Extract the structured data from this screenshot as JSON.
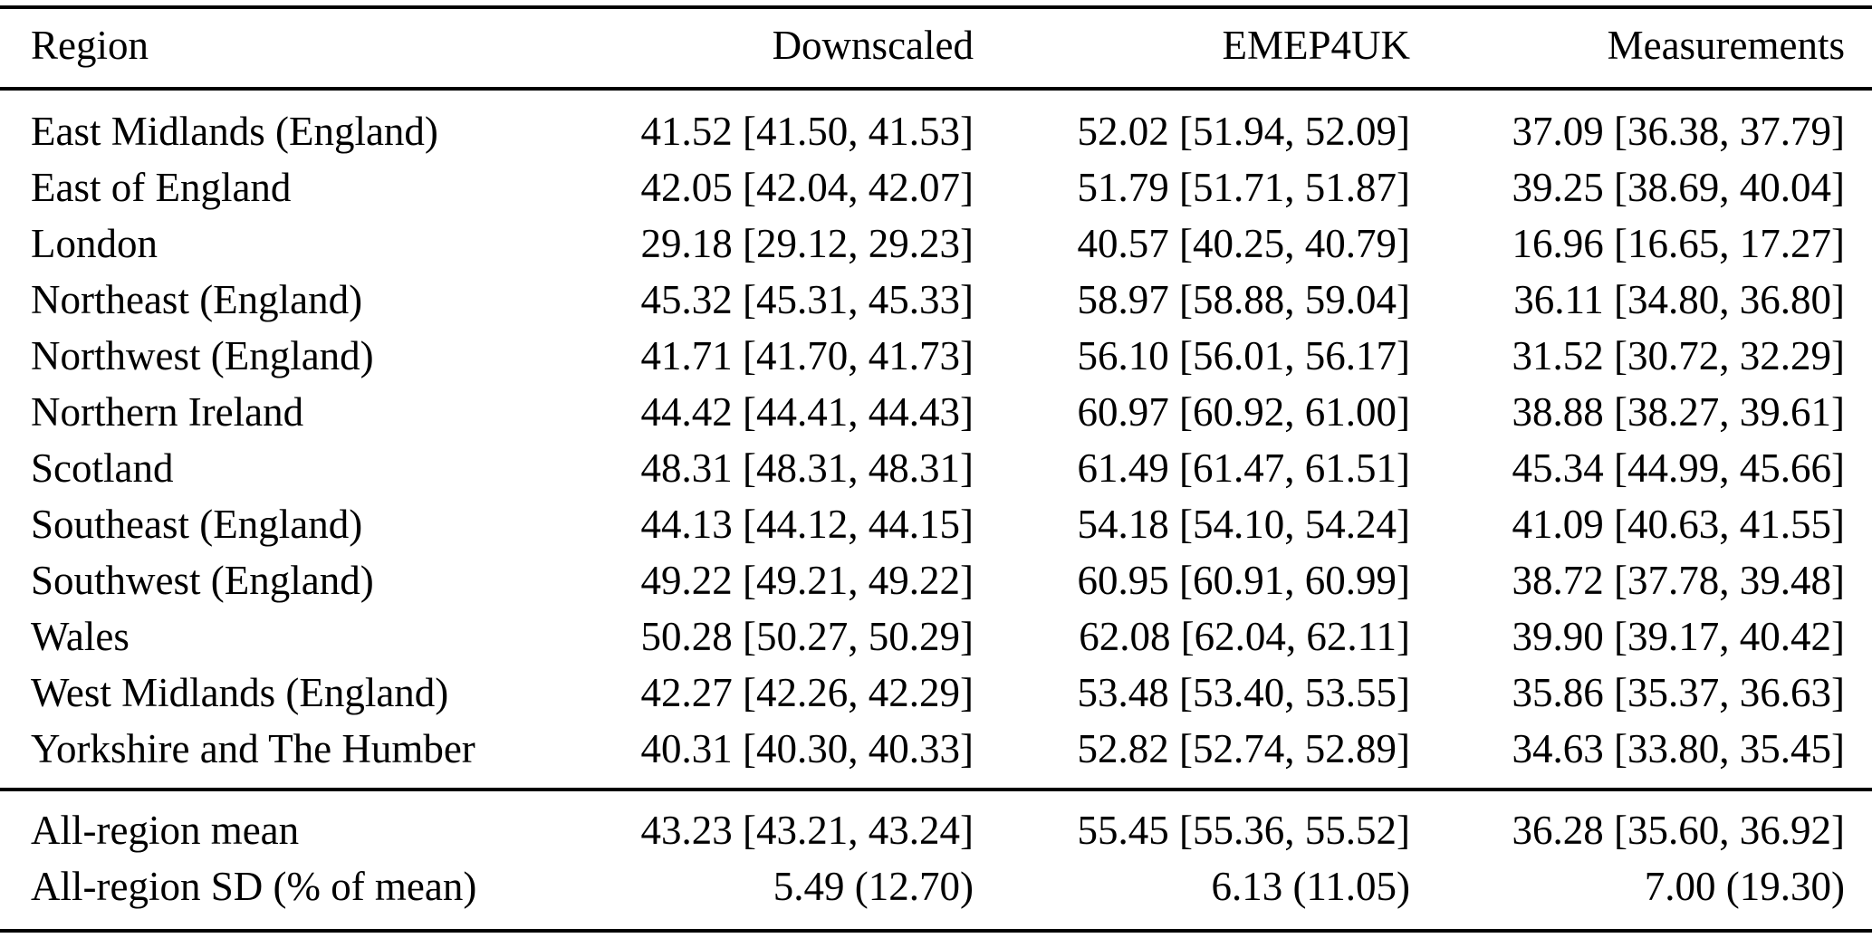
{
  "page": {
    "background_color": "#ffffff",
    "text_color": "#000000",
    "rule_color": "#000000"
  },
  "table": {
    "columns": [
      {
        "label": "Region"
      },
      {
        "label": "Downscaled"
      },
      {
        "label": "EMEP4UK"
      },
      {
        "label": "Measurements"
      }
    ],
    "rows": [
      {
        "region": "East Midlands (England)",
        "downscaled": "41.52 [41.50, 41.53]",
        "emep4uk": "52.02 [51.94, 52.09]",
        "measurements": "37.09 [36.38, 37.79]"
      },
      {
        "region": "East of England",
        "downscaled": "42.05 [42.04, 42.07]",
        "emep4uk": "51.79 [51.71, 51.87]",
        "measurements": "39.25 [38.69, 40.04]"
      },
      {
        "region": "London",
        "downscaled": "29.18 [29.12, 29.23]",
        "emep4uk": "40.57 [40.25, 40.79]",
        "measurements": "16.96 [16.65, 17.27]"
      },
      {
        "region": "Northeast (England)",
        "downscaled": "45.32 [45.31, 45.33]",
        "emep4uk": "58.97 [58.88, 59.04]",
        "measurements": "36.11 [34.80, 36.80]"
      },
      {
        "region": "Northwest (England)",
        "downscaled": "41.71 [41.70, 41.73]",
        "emep4uk": "56.10 [56.01, 56.17]",
        "measurements": "31.52 [30.72, 32.29]"
      },
      {
        "region": "Northern Ireland",
        "downscaled": "44.42 [44.41, 44.43]",
        "emep4uk": "60.97 [60.92, 61.00]",
        "measurements": "38.88 [38.27, 39.61]"
      },
      {
        "region": "Scotland",
        "downscaled": "48.31 [48.31, 48.31]",
        "emep4uk": "61.49 [61.47, 61.51]",
        "measurements": "45.34 [44.99, 45.66]"
      },
      {
        "region": "Southeast (England)",
        "downscaled": "44.13 [44.12, 44.15]",
        "emep4uk": "54.18 [54.10, 54.24]",
        "measurements": "41.09 [40.63, 41.55]"
      },
      {
        "region": "Southwest (England)",
        "downscaled": "49.22 [49.21, 49.22]",
        "emep4uk": "60.95 [60.91, 60.99]",
        "measurements": "38.72 [37.78, 39.48]"
      },
      {
        "region": "Wales",
        "downscaled": "50.28 [50.27, 50.29]",
        "emep4uk": "62.08 [62.04, 62.11]",
        "measurements": "39.90 [39.17, 40.42]"
      },
      {
        "region": "West Midlands (England)",
        "downscaled": "42.27 [42.26, 42.29]",
        "emep4uk": "53.48 [53.40, 53.55]",
        "measurements": "35.86 [35.37, 36.63]"
      },
      {
        "region": "Yorkshire and The Humber",
        "downscaled": "40.31 [40.30, 40.33]",
        "emep4uk": "52.82 [52.74, 52.89]",
        "measurements": "34.63 [33.80, 35.45]"
      }
    ],
    "summary_rows": [
      {
        "region": "All-region mean",
        "downscaled": "43.23 [43.21, 43.24]",
        "emep4uk": "55.45 [55.36, 55.52]",
        "measurements": "36.28 [35.60, 36.92]"
      },
      {
        "region": "All-region SD (% of mean)",
        "downscaled": "5.49 (12.70)",
        "emep4uk": "6.13 (11.05)",
        "measurements": "7.00 (19.30)"
      }
    ]
  }
}
